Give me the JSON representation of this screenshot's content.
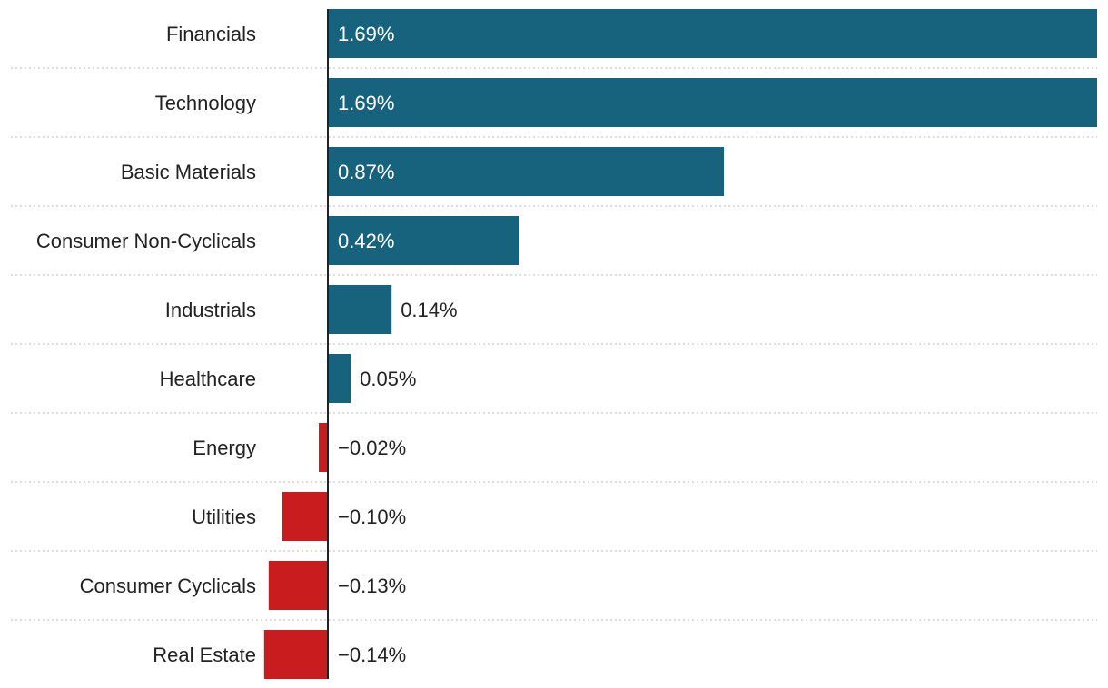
{
  "chart_data": {
    "type": "bar",
    "orientation": "horizontal",
    "title": "",
    "xlabel": "",
    "ylabel": "",
    "categories": [
      "Financials",
      "Technology",
      "Basic Materials",
      "Consumer Non-Cyclicals",
      "Industrials",
      "Healthcare",
      "Energy",
      "Utilities",
      "Consumer Cyclicals",
      "Real Estate"
    ],
    "values": [
      1.69,
      1.69,
      0.87,
      0.42,
      0.14,
      0.05,
      -0.02,
      -0.1,
      -0.13,
      -0.14
    ],
    "value_labels": [
      "1.69%",
      "1.69%",
      "0.87%",
      "0.42%",
      "0.14%",
      "0.05%",
      "−0.02%",
      "−0.10%",
      "−0.13%",
      "−0.14%"
    ],
    "xlim": [
      -0.14,
      1.69
    ],
    "grid": "horizontal dotted separators",
    "legend": "none",
    "colors": {
      "positive": "#17627c",
      "negative": "#c91c1f",
      "label_on_bar": "#ffffff",
      "label_outside": "#222222",
      "axis": "#222222",
      "grid": "#bbbbbb"
    }
  }
}
